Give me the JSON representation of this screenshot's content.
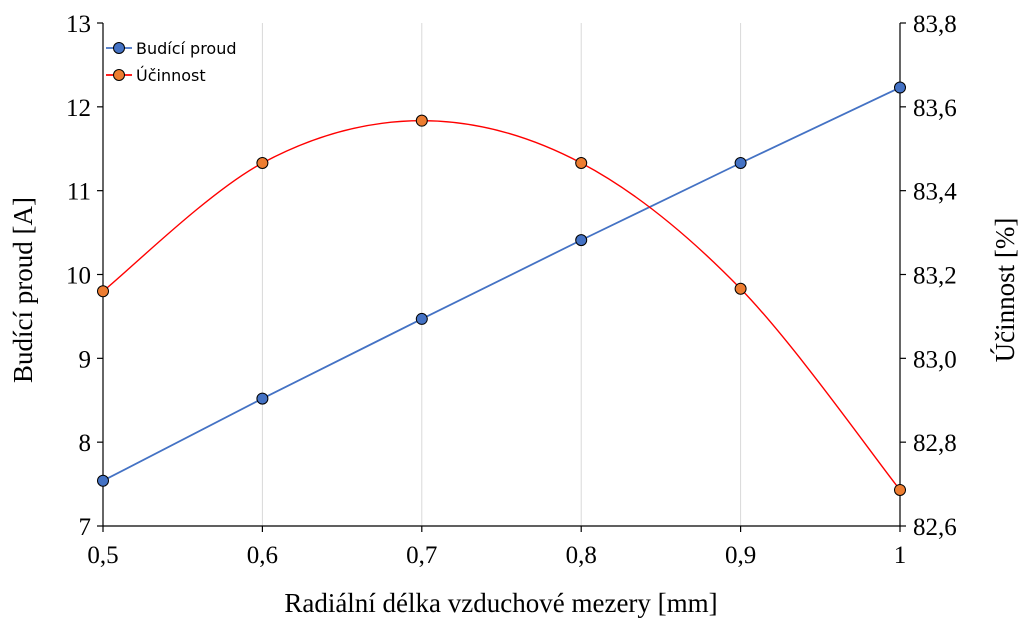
{
  "chart_data": {
    "type": "line",
    "xlabel": "Radiální délka vzduchové mezery [mm]",
    "ylabel": "Budící proud [A]",
    "y2label": "Účinnost [%]",
    "x": [
      0.5,
      0.6,
      0.7,
      0.8,
      0.9,
      1.0
    ],
    "x_ticks": [
      "0,5",
      "0,6",
      "0,7",
      "0,8",
      "0,9",
      "1"
    ],
    "xlim": [
      0.5,
      1.0
    ],
    "ylim": [
      7,
      13
    ],
    "y_ticks": [
      "7",
      "8",
      "9",
      "10",
      "11",
      "12",
      "13"
    ],
    "y2lim": [
      82.6,
      83.8
    ],
    "y2_ticks": [
      "82,6",
      "82,8",
      "83,0",
      "83,2",
      "83,4",
      "83,6",
      "83,8"
    ],
    "grid": "vertical",
    "legend": "top-left",
    "series": [
      {
        "name": "Budící proud",
        "axis": "left",
        "color": "#4472c4",
        "marker_color": "#4472c4",
        "line_style": "straight",
        "values": [
          7.54,
          8.52,
          9.47,
          10.41,
          11.33,
          12.23
        ]
      },
      {
        "name": "Účinnost",
        "axis": "right",
        "color": "#ff0000",
        "marker_color": "#ed7d31",
        "line_style": "smooth",
        "values": [
          83.16,
          83.466,
          83.567,
          83.466,
          83.166,
          82.686
        ]
      }
    ]
  }
}
